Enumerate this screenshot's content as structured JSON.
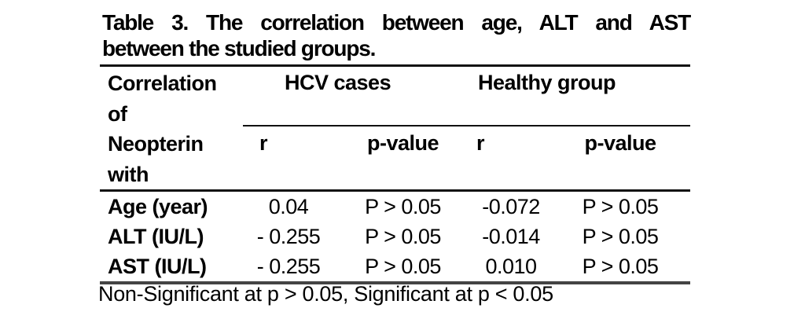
{
  "colors": {
    "text": "#000000",
    "rule": "#111111"
  },
  "title": {
    "line1": "Table 3. The correlation between age, ALT and AST",
    "line2": "between the studied groups."
  },
  "table": {
    "stub_header_lines": [
      "Correlation",
      "of",
      "Neopterin",
      "with"
    ],
    "group_headers": [
      "HCV cases",
      "Healthy group"
    ],
    "sub_headers": [
      "r",
      "p-value",
      "r",
      "p-value"
    ],
    "rows": [
      {
        "label": "Age (year)",
        "values": [
          "0.04",
          "P > 0.05",
          "-0.072",
          "P > 0.05"
        ]
      },
      {
        "label": "ALT (IU/L)",
        "values": [
          "- 0.255",
          "P > 0.05",
          "-0.014",
          "P > 0.05"
        ]
      },
      {
        "label": "AST (IU/L)",
        "values": [
          "- 0.255",
          "P > 0.05",
          "0.010",
          "P > 0.05"
        ]
      }
    ],
    "footnote": "Non-Significant at p > 0.05, Significant at p < 0.05"
  }
}
